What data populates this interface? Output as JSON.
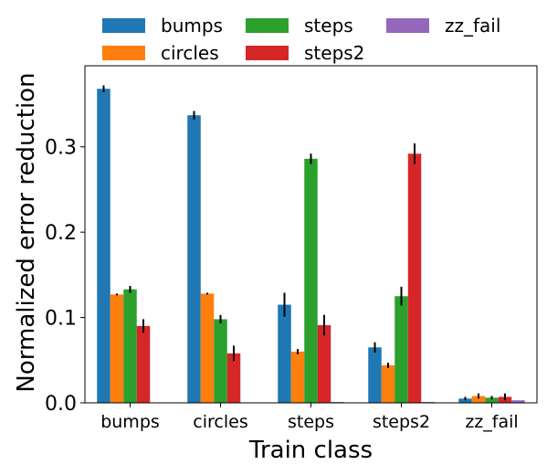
{
  "chart_data": {
    "type": "bar",
    "title": "",
    "xlabel": "Train class",
    "ylabel": "Normalized error reduction",
    "categories": [
      "bumps",
      "circles",
      "steps",
      "steps2",
      "zz_fail"
    ],
    "ylim": [
      0,
      0.395
    ],
    "yticks": [
      0.0,
      0.1,
      0.2,
      0.3
    ],
    "ytick_labels": [
      "0.0",
      "0.1",
      "0.2",
      "0.3"
    ],
    "grid": false,
    "legend_position": "top (above plot), 3 columns",
    "series": [
      {
        "name": "bumps",
        "color": "#1f77b4",
        "values": [
          0.368,
          0.337,
          0.115,
          0.065,
          0.005
        ],
        "errors": [
          0.004,
          0.005,
          0.014,
          0.006,
          0.002
        ]
      },
      {
        "name": "circles",
        "color": "#ff7f0e",
        "values": [
          0.127,
          0.128,
          0.06,
          0.044,
          0.008
        ],
        "errors": [
          0.001,
          0.001,
          0.003,
          0.003,
          0.003
        ]
      },
      {
        "name": "steps",
        "color": "#2ca02c",
        "values": [
          0.133,
          0.098,
          0.286,
          0.125,
          0.006
        ],
        "errors": [
          0.004,
          0.005,
          0.006,
          0.011,
          0.002
        ]
      },
      {
        "name": "steps2",
        "color": "#d62728",
        "values": [
          0.09,
          0.058,
          0.091,
          0.292,
          0.007
        ],
        "errors": [
          0.008,
          0.009,
          0.012,
          0.012,
          0.004
        ]
      },
      {
        "name": "zz_fail",
        "color": "#9467bd",
        "values": [
          0.0,
          0.0,
          0.001,
          0.001,
          0.003
        ],
        "errors": [
          0.0,
          0.0,
          0.0,
          0.0,
          0.0
        ]
      }
    ]
  }
}
